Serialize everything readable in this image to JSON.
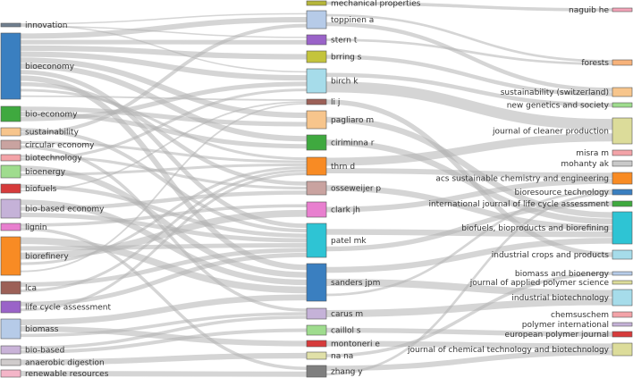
{
  "diagram": {
    "type": "three-field-plot",
    "columns": {
      "left": [
        {
          "label": "innovation",
          "color": "#6f7f8f"
        },
        {
          "label": "bioeconomy",
          "color": "#3a7fc0"
        },
        {
          "label": "bio-economy",
          "color": "#3fa93f"
        },
        {
          "label": "sustainability",
          "color": "#f7c58c"
        },
        {
          "label": "circular economy",
          "color": "#c9a3a0"
        },
        {
          "label": "biotechnology",
          "color": "#f3a3a8"
        },
        {
          "label": "bioenergy",
          "color": "#9fdc8e"
        },
        {
          "label": "biofuels",
          "color": "#d63b3b"
        },
        {
          "label": "bio-based economy",
          "color": "#c5b2d8"
        },
        {
          "label": "lignin",
          "color": "#e87fcf"
        },
        {
          "label": "biorefinery",
          "color": "#f88b24"
        },
        {
          "label": "lca",
          "color": "#9c6057"
        },
        {
          "label": "life cycle assessment",
          "color": "#9a63c8"
        },
        {
          "label": "biomass",
          "color": "#b6cbe8"
        },
        {
          "label": "bio-based",
          "color": "#c9b3d8"
        },
        {
          "label": "anaerobic digestion",
          "color": "#d0cccc"
        },
        {
          "label": "renewable resources",
          "color": "#f4b5c8"
        }
      ],
      "middle": [
        {
          "label": "mechanical properties",
          "color": "#b6b63a"
        },
        {
          "label": "toppinen a",
          "color": "#b6cbe8"
        },
        {
          "label": "stern t",
          "color": "#9a63c8"
        },
        {
          "label": "brring s",
          "color": "#c4c43c"
        },
        {
          "label": "birch k",
          "color": "#a6dcea"
        },
        {
          "label": "li j",
          "color": "#9c6057"
        },
        {
          "label": "pagliaro m",
          "color": "#f7c58c"
        },
        {
          "label": "ciriminna r",
          "color": "#3fa93f"
        },
        {
          "label": "thrn d",
          "color": "#f88b24"
        },
        {
          "label": "osseweijer p",
          "color": "#c9a3a0"
        },
        {
          "label": "clark jh",
          "color": "#e87fcf"
        },
        {
          "label": "patel mk",
          "color": "#2ec4d4"
        },
        {
          "label": "sanders jpm",
          "color": "#3a7fc0"
        },
        {
          "label": "carus m",
          "color": "#c5b2d8"
        },
        {
          "label": "caillol s",
          "color": "#9fdc8e"
        },
        {
          "label": "montoneri e",
          "color": "#d63b3b"
        },
        {
          "label": "na na",
          "color": "#e0e0a8"
        },
        {
          "label": "zhang y",
          "color": "#7f7f7f"
        }
      ],
      "right": [
        {
          "label": "naguib he",
          "color": "#f3a3b8"
        },
        {
          "label": "forests",
          "color": "#f7b27a"
        },
        {
          "label": "sustainability (switzerland)",
          "color": "#f7c58c"
        },
        {
          "label": "new genetics and society",
          "color": "#9fdc8e"
        },
        {
          "label": "journal of cleaner production",
          "color": "#dcdc9a"
        },
        {
          "label": "misra m",
          "color": "#f3a3a8"
        },
        {
          "label": "mohanty ak",
          "color": "#c9c9c9"
        },
        {
          "label": "acs sustainable chemistry and engineering",
          "color": "#f88b24"
        },
        {
          "label": "bioresource technology",
          "color": "#3a7fc0"
        },
        {
          "label": "international journal of life cycle assessment",
          "color": "#3fa93f"
        },
        {
          "label": "biofuels, bioproducts and biorefining",
          "color": "#2ec4d4"
        },
        {
          "label": "industrial crops and products",
          "color": "#a6dcea"
        },
        {
          "label": "biomass and bioenergy",
          "color": "#b6cbe8"
        },
        {
          "label": "journal of applied polymer science",
          "color": "#dcdc9a"
        },
        {
          "label": "industrial biotechnology",
          "color": "#a6dcea"
        },
        {
          "label": "chemsuschem",
          "color": "#f3a3a8"
        },
        {
          "label": "polymer international",
          "color": "#c5b2d8"
        },
        {
          "label": "european polymer journal",
          "color": "#d63b3b"
        },
        {
          "label": "journal of chemical technology and biotechnology",
          "color": "#dcdc9a"
        }
      ]
    },
    "links": [
      [
        "innovation",
        "toppinen a"
      ],
      [
        "innovation",
        "birch k"
      ],
      [
        "innovation",
        "stern t"
      ],
      [
        "bioeconomy",
        "toppinen a"
      ],
      [
        "bioeconomy",
        "stern t"
      ],
      [
        "bioeconomy",
        "brring s"
      ],
      [
        "bioeconomy",
        "birch k"
      ],
      [
        "bioeconomy",
        "pagliaro m"
      ],
      [
        "bioeconomy",
        "ciriminna r"
      ],
      [
        "bioeconomy",
        "patel mk"
      ],
      [
        "bioeconomy",
        "sanders jpm"
      ],
      [
        "bioeconomy",
        "osseweijer p"
      ],
      [
        "bioeconomy",
        "thrn d"
      ],
      [
        "bioeconomy",
        "li j"
      ],
      [
        "bio-economy",
        "pagliaro m"
      ],
      [
        "bio-economy",
        "ciriminna r"
      ],
      [
        "bio-economy",
        "birch k"
      ],
      [
        "sustainability",
        "patel mk"
      ],
      [
        "sustainability",
        "toppinen a"
      ],
      [
        "circular economy",
        "thrn d"
      ],
      [
        "circular economy",
        "carus m"
      ],
      [
        "biotechnology",
        "osseweijer p"
      ],
      [
        "biotechnology",
        "birch k"
      ],
      [
        "bioenergy",
        "sanders jpm"
      ],
      [
        "bioenergy",
        "thrn d"
      ],
      [
        "biofuels",
        "patel mk"
      ],
      [
        "biofuels",
        "li j"
      ],
      [
        "bio-based economy",
        "sanders jpm"
      ],
      [
        "bio-based economy",
        "osseweijer p"
      ],
      [
        "bio-based economy",
        "patel mk"
      ],
      [
        "lignin",
        "clark jh"
      ],
      [
        "lignin",
        "zhang y"
      ],
      [
        "biorefinery",
        "sanders jpm"
      ],
      [
        "biorefinery",
        "patel mk"
      ],
      [
        "biorefinery",
        "clark jh"
      ],
      [
        "biorefinery",
        "thrn d"
      ],
      [
        "biorefinery",
        "li j"
      ],
      [
        "lca",
        "patel mk"
      ],
      [
        "lca",
        "thrn d"
      ],
      [
        "life cycle assessment",
        "patel mk"
      ],
      [
        "life cycle assessment",
        "thrn d"
      ],
      [
        "biomass",
        "sanders jpm"
      ],
      [
        "biomass",
        "montoneri e"
      ],
      [
        "biomass",
        "carus m"
      ],
      [
        "bio-based",
        "carus m"
      ],
      [
        "bio-based",
        "caillol s"
      ],
      [
        "anaerobic digestion",
        "na na"
      ],
      [
        "renewable resources",
        "zhang y"
      ],
      [
        "mechanical properties",
        "naguib he"
      ],
      [
        "toppinen a",
        "forests"
      ],
      [
        "toppinen a",
        "sustainability (switzerland)"
      ],
      [
        "stern t",
        "forests"
      ],
      [
        "brring s",
        "sustainability (switzerland)"
      ],
      [
        "birch k",
        "new genetics and society"
      ],
      [
        "birch k",
        "journal of cleaner production"
      ],
      [
        "pagliaro m",
        "biofuels, bioproducts and biorefining"
      ],
      [
        "ciriminna r",
        "biofuels, bioproducts and biorefining"
      ],
      [
        "thrn d",
        "journal of cleaner production"
      ],
      [
        "thrn d",
        "acs sustainable chemistry and engineering"
      ],
      [
        "osseweijer p",
        "biofuels, bioproducts and biorefining"
      ],
      [
        "clark jh",
        "acs sustainable chemistry and engineering"
      ],
      [
        "patel mk",
        "biofuels, bioproducts and biorefining"
      ],
      [
        "patel mk",
        "international journal of life cycle assessment"
      ],
      [
        "sanders jpm",
        "biofuels, bioproducts and biorefining"
      ],
      [
        "sanders jpm",
        "industrial biotechnology"
      ],
      [
        "sanders jpm",
        "bioresource technology"
      ],
      [
        "carus m",
        "industrial biotechnology"
      ],
      [
        "caillol s",
        "european polymer journal"
      ],
      [
        "montoneri e",
        "journal of chemical technology and biotechnology"
      ],
      [
        "zhang y",
        "journal of chemical technology and biotechnology"
      ],
      [
        "zhang y",
        "bioresource technology"
      ],
      [
        "li j",
        "industrial crops and products"
      ],
      [
        "na na",
        "biomass and bioenergy"
      ]
    ]
  }
}
